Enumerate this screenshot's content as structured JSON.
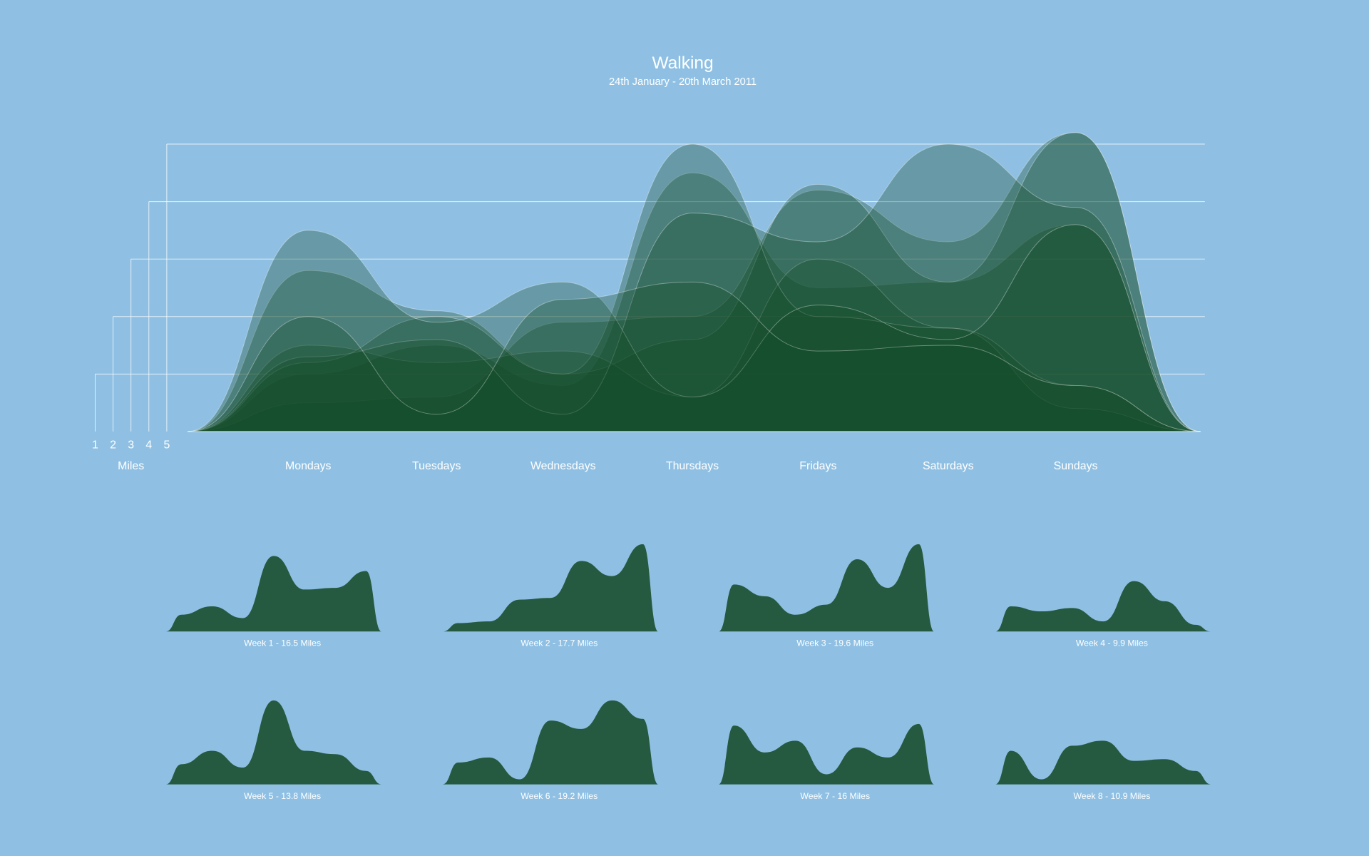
{
  "chart_data": {
    "type": "area",
    "title": "Walking",
    "subtitle": "24th January - 20th March 2011",
    "y_label": "Miles",
    "categories": [
      "Mondays",
      "Tuesdays",
      "Wednesdays",
      "Thursdays",
      "Fridays",
      "Saturdays",
      "Sundays"
    ],
    "ylim": [
      0,
      5
    ],
    "yticks": [
      1,
      2,
      3,
      4,
      5
    ],
    "grid": true,
    "color": "#134a26",
    "small_color": "#265a40",
    "series": [
      {
        "name": "Week 1 - 16.5 Miles",
        "values": [
          1.0,
          1.5,
          0.8,
          4.5,
          2.5,
          2.6,
          3.6
        ]
      },
      {
        "name": "Week 2 - 17.7 Miles",
        "values": [
          0.5,
          0.6,
          1.9,
          2.0,
          4.2,
          3.3,
          5.2
        ]
      },
      {
        "name": "Week 3 - 19.6 Miles",
        "values": [
          2.8,
          2.1,
          1.0,
          1.6,
          4.3,
          2.6,
          5.2
        ]
      },
      {
        "name": "Week 4 - 9.9 Miles",
        "values": [
          1.5,
          1.2,
          1.4,
          0.6,
          3.0,
          1.8,
          0.4
        ]
      },
      {
        "name": "Week 5 - 13.8 Miles",
        "values": [
          1.2,
          2.0,
          1.0,
          5.0,
          2.0,
          1.8,
          0.8
        ]
      },
      {
        "name": "Week 6 - 19.2 Miles",
        "values": [
          1.3,
          1.6,
          0.3,
          3.8,
          3.3,
          5.0,
          3.9
        ]
      },
      {
        "name": "Week 7 - 16 Miles",
        "values": [
          3.5,
          1.9,
          2.6,
          0.6,
          2.2,
          1.6,
          3.6
        ]
      },
      {
        "name": "Week 8 - 10.9 Miles",
        "values": [
          2.0,
          0.3,
          2.3,
          2.6,
          1.4,
          1.5,
          0.8
        ]
      }
    ]
  }
}
